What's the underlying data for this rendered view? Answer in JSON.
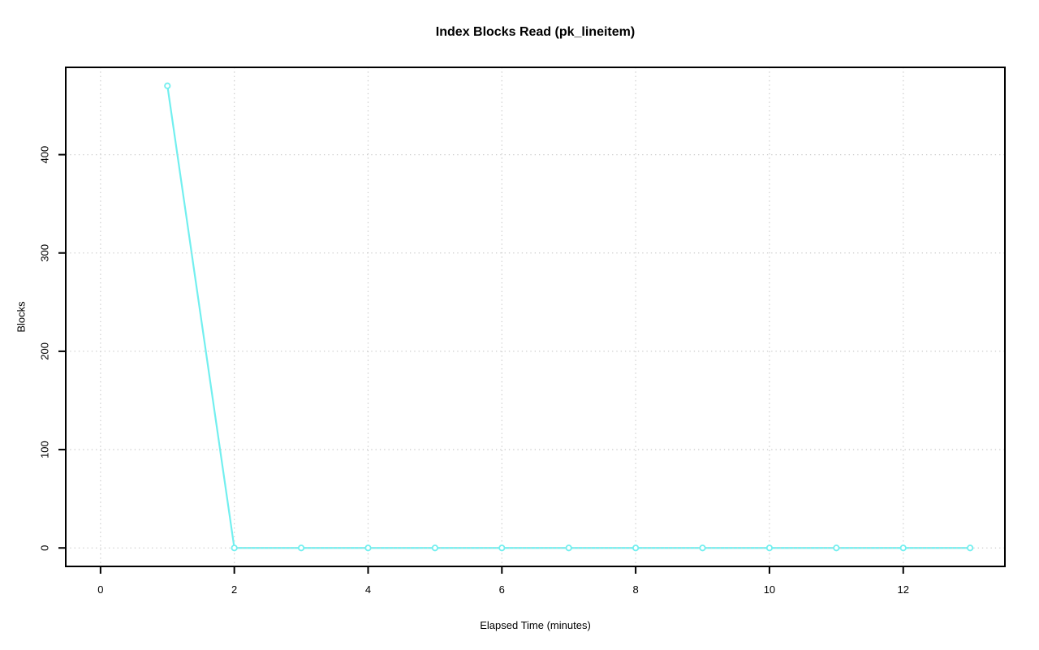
{
  "chart_data": {
    "type": "line",
    "title": "Index Blocks Read (pk_lineitem)",
    "xlabel": "Elapsed Time (minutes)",
    "ylabel": "Blocks",
    "x": [
      1,
      2,
      3,
      4,
      5,
      6,
      7,
      8,
      9,
      10,
      11,
      12,
      13
    ],
    "values": [
      470,
      0,
      0,
      0,
      0,
      0,
      0,
      0,
      0,
      0,
      0,
      0,
      0
    ],
    "xticks": [
      0,
      2,
      4,
      6,
      8,
      10,
      12
    ],
    "yticks": [
      0,
      100,
      200,
      300,
      400
    ],
    "xlim": [
      -0.52,
      13.52
    ],
    "ylim": [
      -18.8,
      488.8
    ],
    "grid": true,
    "grid_style": "dotted",
    "legend": null,
    "marker": "open-circle",
    "line_style": "solid",
    "colors": {
      "line": "#72efef",
      "marker_stroke": "#72efef",
      "marker_fill": "#ffffff",
      "grid": "#cccccc",
      "axis": "#000000",
      "text": "#000000",
      "background": "#ffffff"
    }
  }
}
